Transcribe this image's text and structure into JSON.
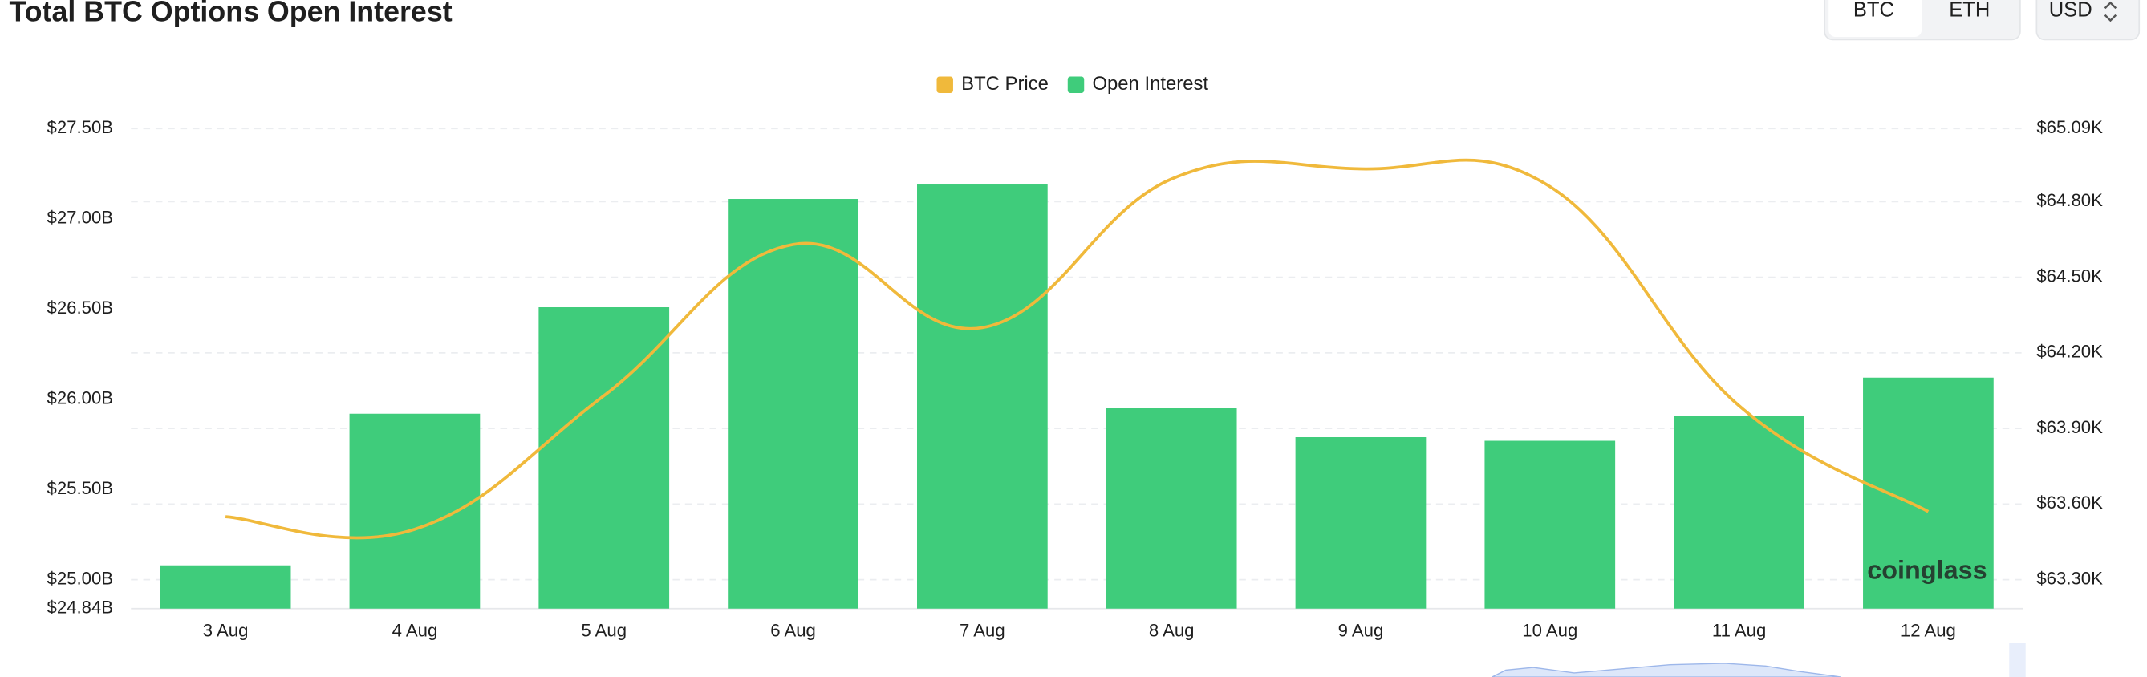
{
  "chart_data": {
    "type": "bar",
    "title": "Total BTC Options Open Interest",
    "categories": [
      "3 Aug",
      "4 Aug",
      "5 Aug",
      "6 Aug",
      "7 Aug",
      "8 Aug",
      "9 Aug",
      "10 Aug",
      "11 Aug",
      "12 Aug"
    ],
    "series": [
      {
        "name": "BTC Price",
        "type": "line",
        "color": "#f0b93b",
        "axis": "y2",
        "values": [
          63.55,
          63.5,
          64.03,
          64.63,
          64.3,
          64.89,
          64.93,
          64.86,
          63.99,
          63.57
        ]
      },
      {
        "name": "Open Interest",
        "type": "bar",
        "color": "#3fcc7b",
        "values": [
          25.08,
          25.92,
          26.51,
          27.11,
          27.19,
          25.95,
          25.79,
          25.77,
          25.91,
          26.12
        ]
      }
    ],
    "ylim": [
      24.84,
      27.5
    ],
    "yticks": [
      {
        "value": 24.84,
        "label": "$24.84B"
      },
      {
        "value": 25,
        "label": "$25.00B"
      },
      {
        "value": 25.5,
        "label": "$25.50B"
      },
      {
        "value": 26,
        "label": "$26.00B"
      },
      {
        "value": 26.5,
        "label": "$26.50B"
      },
      {
        "value": 27,
        "label": "$27.00B"
      },
      {
        "value": 27.5,
        "label": "$27.50B"
      }
    ],
    "y2lim": [
      63.185,
      65.09
    ],
    "y2ticks": [
      {
        "value": 63.3,
        "label": "$63.30K"
      },
      {
        "value": 63.6,
        "label": "$63.60K"
      },
      {
        "value": 63.9,
        "label": "$63.90K"
      },
      {
        "value": 64.2,
        "label": "$64.20K"
      },
      {
        "value": 64.5,
        "label": "$64.50K"
      },
      {
        "value": 64.8,
        "label": "$64.80K"
      },
      {
        "value": 65.09,
        "label": "$65.09K"
      }
    ],
    "grid": true,
    "legend": "top"
  },
  "controls": {
    "coins": [
      "BTC",
      "ETH"
    ],
    "currency": "USD"
  },
  "watermark": "coinglass"
}
